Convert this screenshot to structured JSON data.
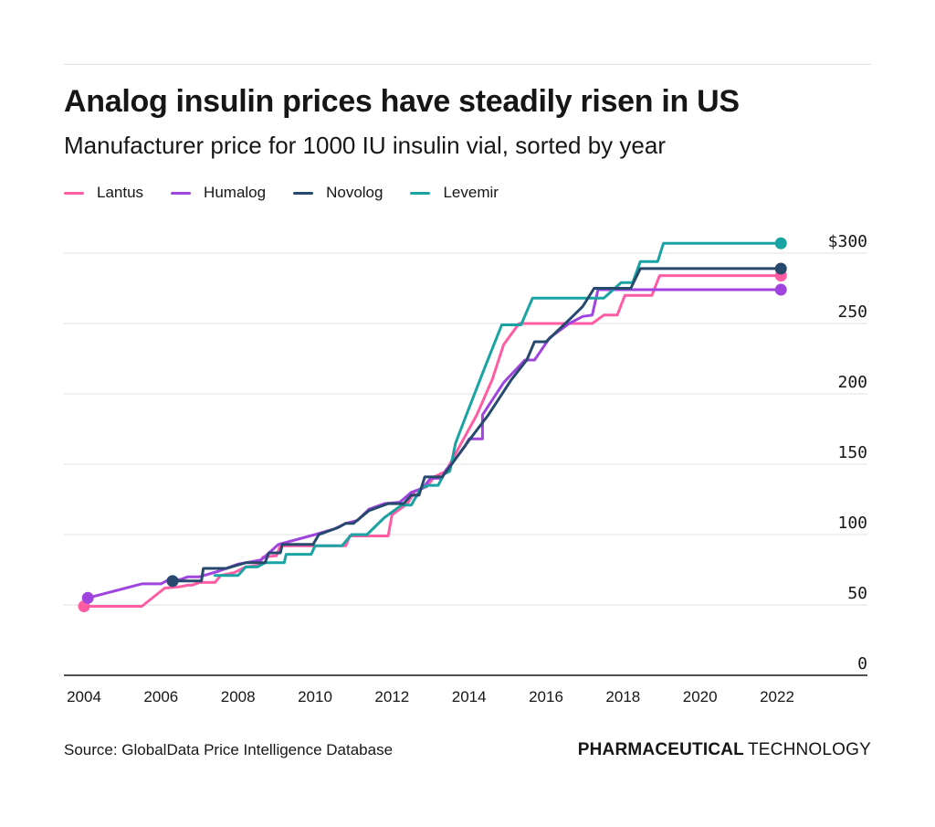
{
  "header": {
    "title": "Analog insulin prices have steadily risen in US",
    "subtitle": "Manufacturer price for 1000 IU insulin vial, sorted by year"
  },
  "footer": {
    "source": "Source: GlobalData Price Intelligence Database",
    "brand_bold": "PHARMACEUTICAL",
    "brand_light": "TECHNOLOGY"
  },
  "chart_data": {
    "type": "line",
    "title": "Analog insulin prices have steadily risen in US",
    "subtitle": "Manufacturer price for 1000 IU insulin vial, sorted by year",
    "xlabel": "",
    "ylabel": "",
    "xlim": [
      2004,
      2024
    ],
    "ylim": [
      0,
      300
    ],
    "x_ticks": [
      2004,
      2006,
      2008,
      2010,
      2012,
      2014,
      2016,
      2018,
      2020,
      2022
    ],
    "x_tick_labels": [
      "2004",
      "2006",
      "2008",
      "2010",
      "2012",
      "2014",
      "2016",
      "2018",
      "2020",
      "2022"
    ],
    "y_ticks": [
      0,
      50,
      100,
      150,
      200,
      250,
      300
    ],
    "y_tick_labels": [
      "0",
      "50",
      "100",
      "150",
      "200",
      "250",
      "$300"
    ],
    "y_axis_side": "right",
    "grid": true,
    "legend_position": "top-left",
    "end_markers": true,
    "series": [
      {
        "name": "Lantus",
        "color": "#ff5ca3",
        "start_marker": true,
        "points": [
          [
            2004.0,
            49
          ],
          [
            2005.5,
            49
          ],
          [
            2006.1,
            62
          ],
          [
            2006.5,
            63
          ],
          [
            2006.7,
            64
          ],
          [
            2006.8,
            64
          ],
          [
            2007.0,
            66
          ],
          [
            2007.4,
            66
          ],
          [
            2007.55,
            71
          ],
          [
            2007.9,
            73
          ],
          [
            2008.2,
            77
          ],
          [
            2008.5,
            78
          ],
          [
            2008.65,
            84
          ],
          [
            2009.0,
            85
          ],
          [
            2009.1,
            92
          ],
          [
            2010.8,
            92
          ],
          [
            2010.9,
            99
          ],
          [
            2011.9,
            99
          ],
          [
            2012.0,
            114
          ],
          [
            2012.4,
            122
          ],
          [
            2012.6,
            131
          ],
          [
            2012.9,
            134
          ],
          [
            2013.1,
            141
          ],
          [
            2013.4,
            145
          ],
          [
            2013.5,
            150
          ],
          [
            2013.7,
            160
          ],
          [
            2014.2,
            185
          ],
          [
            2014.6,
            210
          ],
          [
            2014.9,
            235
          ],
          [
            2015.3,
            250
          ],
          [
            2017.2,
            250
          ],
          [
            2017.5,
            256
          ],
          [
            2017.85,
            256
          ],
          [
            2018.05,
            270
          ],
          [
            2018.75,
            270
          ],
          [
            2018.95,
            284
          ],
          [
            2022.1,
            284
          ]
        ]
      },
      {
        "name": "Humalog",
        "color": "#a044e0",
        "start_marker": true,
        "points": [
          [
            2004.1,
            55
          ],
          [
            2005.5,
            65
          ],
          [
            2006.0,
            65
          ],
          [
            2006.2,
            68
          ],
          [
            2006.5,
            68
          ],
          [
            2006.7,
            70
          ],
          [
            2007.0,
            70
          ],
          [
            2007.5,
            74
          ],
          [
            2008.0,
            79
          ],
          [
            2008.6,
            82
          ],
          [
            2009.05,
            93
          ],
          [
            2010.0,
            100
          ],
          [
            2010.5,
            104
          ],
          [
            2010.8,
            108
          ],
          [
            2011.1,
            110
          ],
          [
            2011.4,
            118
          ],
          [
            2011.8,
            122
          ],
          [
            2012.2,
            123
          ],
          [
            2012.5,
            130
          ],
          [
            2012.8,
            133
          ],
          [
            2013.0,
            140
          ],
          [
            2013.3,
            140
          ],
          [
            2013.4,
            146
          ],
          [
            2013.6,
            152
          ],
          [
            2013.9,
            163
          ],
          [
            2014.0,
            168
          ],
          [
            2014.35,
            168
          ],
          [
            2014.35,
            185
          ],
          [
            2014.9,
            208
          ],
          [
            2015.45,
            224
          ],
          [
            2015.7,
            224
          ],
          [
            2016.1,
            240
          ],
          [
            2016.6,
            250
          ],
          [
            2016.95,
            255
          ],
          [
            2017.2,
            256
          ],
          [
            2017.35,
            274
          ],
          [
            2022.1,
            274
          ]
        ]
      },
      {
        "name": "Novolog",
        "color": "#27496d",
        "start_marker": true,
        "points": [
          [
            2006.3,
            67
          ],
          [
            2007.05,
            67
          ],
          [
            2007.1,
            76
          ],
          [
            2007.7,
            76
          ],
          [
            2008.2,
            80
          ],
          [
            2008.7,
            80
          ],
          [
            2008.8,
            87
          ],
          [
            2009.1,
            87
          ],
          [
            2009.15,
            93
          ],
          [
            2009.95,
            93
          ],
          [
            2010.1,
            100
          ],
          [
            2010.6,
            105
          ],
          [
            2010.8,
            108
          ],
          [
            2011.0,
            108
          ],
          [
            2011.4,
            117
          ],
          [
            2011.9,
            122
          ],
          [
            2012.3,
            122
          ],
          [
            2012.5,
            128
          ],
          [
            2012.7,
            128
          ],
          [
            2012.85,
            141
          ],
          [
            2013.3,
            141
          ],
          [
            2013.55,
            150
          ],
          [
            2014.0,
            167
          ],
          [
            2014.5,
            185
          ],
          [
            2015.1,
            210
          ],
          [
            2015.5,
            224
          ],
          [
            2015.7,
            237
          ],
          [
            2016.0,
            237
          ],
          [
            2016.5,
            250
          ],
          [
            2016.95,
            262
          ],
          [
            2017.25,
            275
          ],
          [
            2018.2,
            275
          ],
          [
            2018.45,
            289
          ],
          [
            2022.1,
            289
          ]
        ]
      },
      {
        "name": "Levemir",
        "color": "#1aa3a3",
        "start_marker": false,
        "points": [
          [
            2007.4,
            71
          ],
          [
            2008.0,
            71
          ],
          [
            2008.2,
            77
          ],
          [
            2008.5,
            77
          ],
          [
            2008.7,
            80
          ],
          [
            2009.2,
            80
          ],
          [
            2009.25,
            86
          ],
          [
            2009.9,
            86
          ],
          [
            2010.0,
            92
          ],
          [
            2010.7,
            92
          ],
          [
            2010.95,
            100
          ],
          [
            2011.35,
            100
          ],
          [
            2011.8,
            112
          ],
          [
            2012.1,
            118
          ],
          [
            2012.25,
            121
          ],
          [
            2012.5,
            121
          ],
          [
            2012.75,
            133
          ],
          [
            2012.95,
            135
          ],
          [
            2013.2,
            135
          ],
          [
            2013.35,
            143
          ],
          [
            2013.5,
            145
          ],
          [
            2013.65,
            165
          ],
          [
            2014.0,
            190
          ],
          [
            2014.4,
            218
          ],
          [
            2014.85,
            249
          ],
          [
            2015.35,
            249
          ],
          [
            2015.65,
            268
          ],
          [
            2017.5,
            268
          ],
          [
            2017.95,
            279
          ],
          [
            2018.25,
            279
          ],
          [
            2018.45,
            294
          ],
          [
            2018.9,
            294
          ],
          [
            2019.05,
            307
          ],
          [
            2022.1,
            307
          ]
        ]
      }
    ]
  }
}
